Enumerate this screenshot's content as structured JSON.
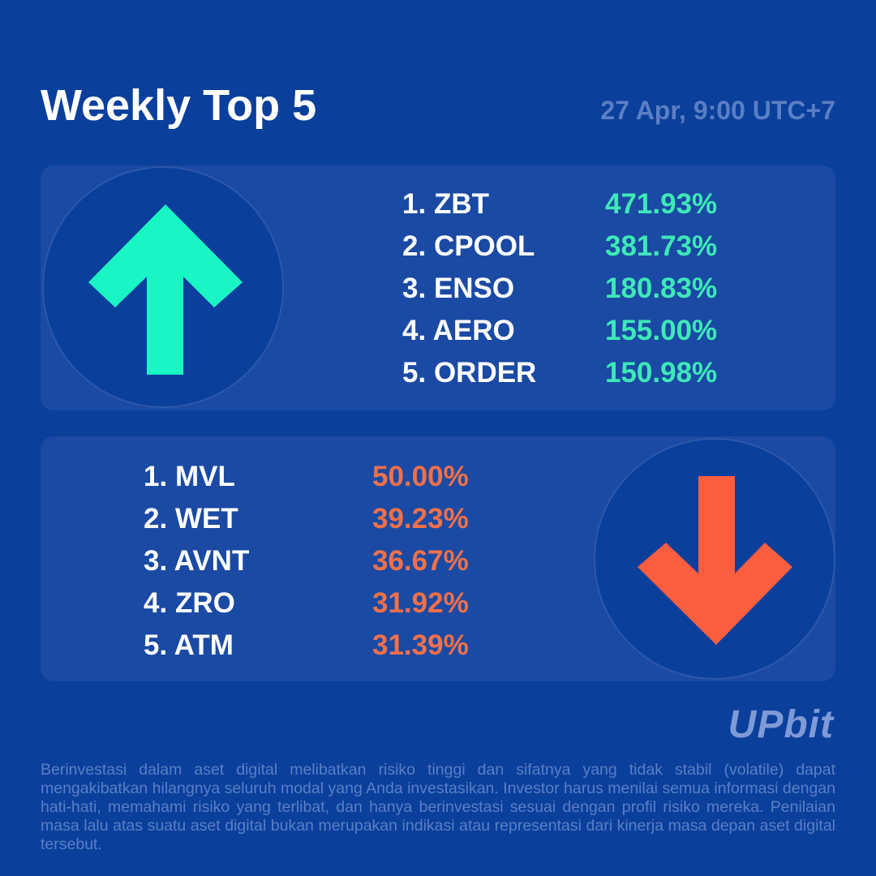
{
  "header": {
    "title": "Weekly Top 5",
    "date": "27 Apr, 9:00 UTC+7"
  },
  "gainers": {
    "icon": "arrow-up-icon",
    "color": "#1af5c4",
    "items": [
      {
        "rank": "1.",
        "coin": "ZBT",
        "change": "471.93%"
      },
      {
        "rank": "2.",
        "coin": "CPOOL",
        "change": "381.73%"
      },
      {
        "rank": "3.",
        "coin": "ENSO",
        "change": "180.83%"
      },
      {
        "rank": "4.",
        "coin": "AERO",
        "change": "155.00%"
      },
      {
        "rank": "5.",
        "coin": "ORDER",
        "change": "150.98%"
      }
    ]
  },
  "losers": {
    "icon": "arrow-down-icon",
    "color": "#fc5e40",
    "items": [
      {
        "rank": "1.",
        "coin": "MVL",
        "change": "50.00%"
      },
      {
        "rank": "2.",
        "coin": "WET",
        "change": "39.23%"
      },
      {
        "rank": "3.",
        "coin": "AVNT",
        "change": "36.67%"
      },
      {
        "rank": "4.",
        "coin": "ZRO",
        "change": "31.92%"
      },
      {
        "rank": "5.",
        "coin": "ATM",
        "change": "31.39%"
      }
    ]
  },
  "brand": {
    "logo": "UPbit"
  },
  "footer": {
    "disclaimer": "Berinvestasi dalam aset digital melibatkan risiko tinggi dan sifatnya yang tidak stabil (volatile) dapat mengakibatkan hilangnya seluruh modal yang Anda investasikan. Investor harus menilai semua informasi dengan hati-hati, memahami risiko yang terlibat, dan hanya berinvestasi sesuai dengan profil risiko mereka. Penilaian masa lalu atas suatu aset digital bukan merupakan indikasi atau representasi dari kinerja masa depan aset digital tersebut."
  }
}
